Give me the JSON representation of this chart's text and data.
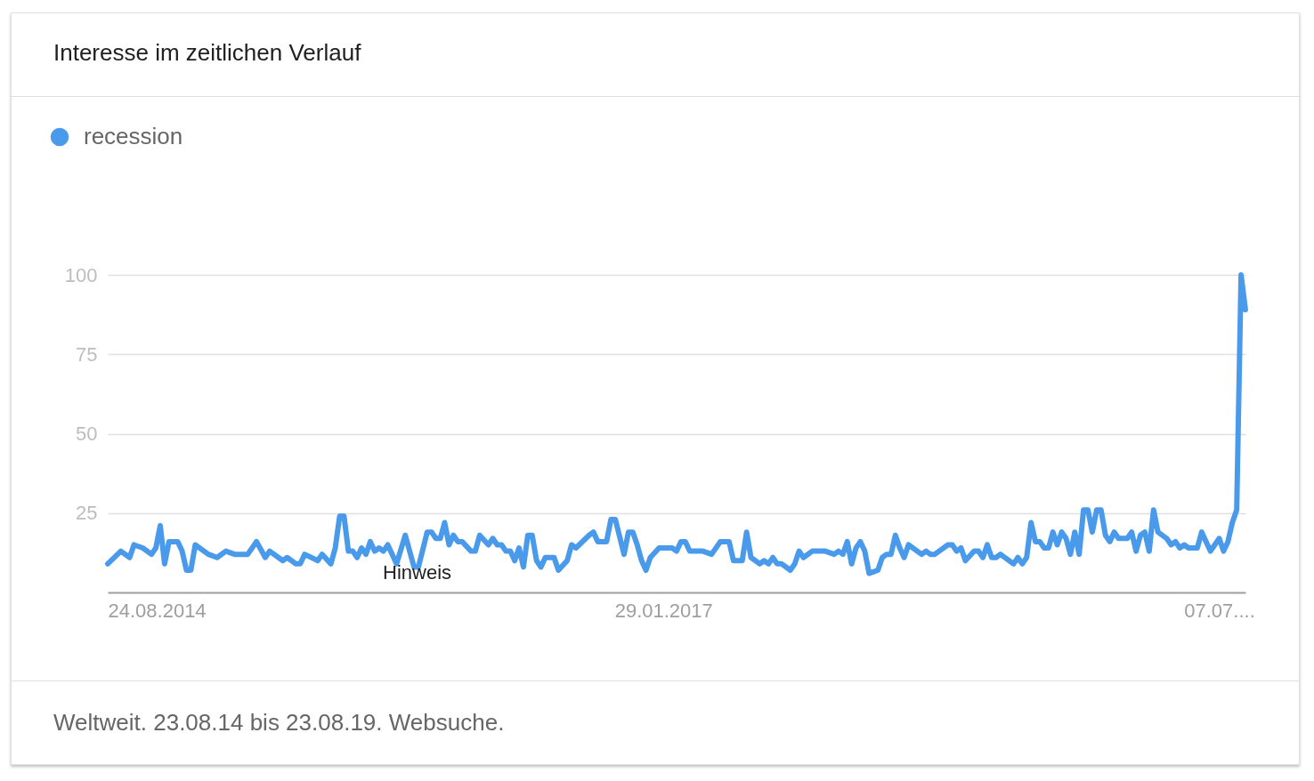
{
  "chart_data": {
    "type": "line",
    "title": "Interesse im zeitlichen Verlauf",
    "x": [
      "2014-08-24",
      "2014-09-14",
      "2014-09-28",
      "2014-10-05",
      "2014-10-19",
      "2014-11-02",
      "2014-11-09",
      "2014-11-16",
      "2014-11-23",
      "2014-11-30",
      "2014-12-14",
      "2014-12-21",
      "2014-12-28",
      "2015-01-04",
      "2015-01-11",
      "2015-02-01",
      "2015-02-15",
      "2015-03-01",
      "2015-03-15",
      "2015-04-05",
      "2015-04-19",
      "2015-05-03",
      "2015-05-10",
      "2015-05-31",
      "2015-06-07",
      "2015-06-21",
      "2015-06-28",
      "2015-07-05",
      "2015-07-26",
      "2015-08-02",
      "2015-08-16",
      "2015-08-23",
      "2015-08-30",
      "2015-09-06",
      "2015-09-13",
      "2015-09-20",
      "2015-09-27",
      "2015-10-04",
      "2015-10-11",
      "2015-10-18",
      "2015-10-25",
      "2015-11-01",
      "2015-11-08",
      "2015-11-15",
      "2015-11-29",
      "2015-12-13",
      "2015-12-27",
      "2016-01-03",
      "2016-01-17",
      "2016-01-24",
      "2016-01-31",
      "2016-02-07",
      "2016-02-14",
      "2016-02-21",
      "2016-02-28",
      "2016-03-06",
      "2016-03-13",
      "2016-03-27",
      "2016-04-03",
      "2016-04-10",
      "2016-04-24",
      "2016-05-01",
      "2016-05-08",
      "2016-05-15",
      "2016-05-22",
      "2016-05-29",
      "2016-06-05",
      "2016-06-12",
      "2016-06-19",
      "2016-06-26",
      "2016-07-03",
      "2016-07-10",
      "2016-07-17",
      "2016-07-24",
      "2016-08-07",
      "2016-08-14",
      "2016-08-28",
      "2016-09-04",
      "2016-09-11",
      "2016-10-02",
      "2016-10-09",
      "2016-10-16",
      "2016-10-30",
      "2016-11-06",
      "2016-11-13",
      "2016-11-27",
      "2016-12-04",
      "2016-12-11",
      "2016-12-18",
      "2016-12-25",
      "2017-01-01",
      "2017-01-08",
      "2017-01-22",
      "2017-02-12",
      "2017-02-19",
      "2017-02-26",
      "2017-03-05",
      "2017-03-12",
      "2017-04-02",
      "2017-04-16",
      "2017-04-30",
      "2017-05-14",
      "2017-05-21",
      "2017-06-04",
      "2017-06-11",
      "2017-06-18",
      "2017-07-02",
      "2017-07-09",
      "2017-07-16",
      "2017-07-23",
      "2017-07-30",
      "2017-08-06",
      "2017-08-20",
      "2017-08-27",
      "2017-09-03",
      "2017-09-10",
      "2017-09-24",
      "2017-10-08",
      "2017-10-15",
      "2017-10-29",
      "2017-11-05",
      "2017-11-12",
      "2017-11-19",
      "2017-11-26",
      "2017-12-03",
      "2017-12-10",
      "2017-12-17",
      "2017-12-24",
      "2018-01-07",
      "2018-01-14",
      "2018-01-21",
      "2018-01-28",
      "2018-02-04",
      "2018-02-11",
      "2018-02-18",
      "2018-02-25",
      "2018-03-18",
      "2018-03-25",
      "2018-04-01",
      "2018-04-08",
      "2018-04-29",
      "2018-05-06",
      "2018-05-13",
      "2018-05-20",
      "2018-05-27",
      "2018-06-10",
      "2018-06-17",
      "2018-06-24",
      "2018-07-01",
      "2018-07-08",
      "2018-07-15",
      "2018-07-22",
      "2018-08-12",
      "2018-08-19",
      "2018-08-26",
      "2018-09-02",
      "2018-09-09",
      "2018-09-16",
      "2018-09-23",
      "2018-09-30",
      "2018-10-07",
      "2018-10-14",
      "2018-10-21",
      "2018-10-28",
      "2018-11-04",
      "2018-11-11",
      "2018-11-18",
      "2018-11-25",
      "2018-12-02",
      "2018-12-09",
      "2018-12-16",
      "2018-12-23",
      "2018-12-30",
      "2019-01-06",
      "2019-01-13",
      "2019-01-20",
      "2019-01-27",
      "2019-02-10",
      "2019-02-17",
      "2019-02-24",
      "2019-03-03",
      "2019-03-10",
      "2019-03-17",
      "2019-03-24",
      "2019-03-31",
      "2019-04-14",
      "2019-04-21",
      "2019-04-28",
      "2019-05-05",
      "2019-05-12",
      "2019-05-19",
      "2019-06-02",
      "2019-06-09",
      "2019-06-16",
      "2019-06-23",
      "2019-07-07",
      "2019-07-14",
      "2019-07-21",
      "2019-07-28",
      "2019-08-04",
      "2019-08-11",
      "2019-08-18"
    ],
    "series": [
      {
        "name": "recession",
        "color": "#4a9aec",
        "values": [
          9,
          13,
          11,
          15,
          14,
          12,
          14,
          21,
          9,
          16,
          16,
          13,
          7,
          7,
          15,
          12,
          11,
          13,
          12,
          12,
          16,
          11,
          13,
          10,
          11,
          9,
          9,
          12,
          10,
          12,
          9,
          14,
          24,
          24,
          13,
          13,
          11,
          14,
          12,
          16,
          13,
          14,
          13,
          15,
          9,
          18,
          8,
          8,
          19,
          19,
          17,
          17,
          22,
          15,
          18,
          16,
          16,
          13,
          13,
          18,
          15,
          17,
          15,
          15,
          13,
          13,
          10,
          14,
          8,
          18,
          18,
          10,
          8,
          11,
          11,
          7,
          10,
          15,
          14,
          18,
          19,
          16,
          16,
          23,
          23,
          12,
          19,
          19,
          15,
          10,
          7,
          11,
          14,
          14,
          13,
          16,
          16,
          13,
          13,
          12,
          16,
          16,
          10,
          10,
          19,
          11,
          9,
          10,
          9,
          11,
          9,
          9,
          7,
          9,
          13,
          11,
          13,
          13,
          13,
          12,
          13,
          12,
          16,
          9,
          14,
          16,
          13,
          6,
          7,
          11,
          12,
          12,
          18,
          14,
          11,
          15,
          12,
          13,
          12,
          12,
          15,
          15,
          13,
          14,
          10,
          13,
          13,
          11,
          15,
          11,
          11,
          12,
          9,
          11,
          9,
          11,
          22,
          16,
          16,
          14,
          14,
          19,
          15,
          19,
          17,
          12,
          19,
          12,
          26,
          26,
          19,
          26,
          26,
          18,
          16,
          19,
          17,
          17,
          19,
          13,
          18,
          19,
          13,
          26,
          19,
          17,
          15,
          16,
          14,
          15,
          14,
          14,
          19,
          16,
          13,
          17,
          13,
          16,
          22,
          26,
          100,
          89
        ]
      }
    ],
    "xlim": [
      "2014-08-24",
      "2019-08-18"
    ],
    "xticks": [
      {
        "value": "2014-08-24",
        "label": "24.08.2014"
      },
      {
        "value": "2017-01-29",
        "label": "29.01.2017"
      },
      {
        "value": "2019-07-07",
        "label": "07.07...."
      }
    ],
    "ylim": [
      0,
      100
    ],
    "yticks": [
      25,
      50,
      75,
      100
    ],
    "grid": "y",
    "legend": "top left",
    "marker": "none",
    "line_style": "solid",
    "annotations": [
      {
        "text": "Hinweis",
        "x": "2016-01-01"
      },
      "Weltweit. 23.08.14 bis 23.08.19. Websuche."
    ]
  }
}
